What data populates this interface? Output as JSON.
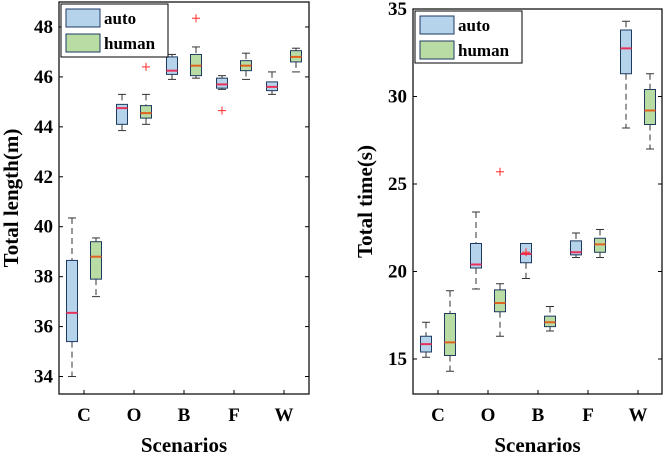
{
  "colors": {
    "auto_fill": "#b6d3ec",
    "human_fill": "#b9dca4",
    "auto_median": "#e8325a",
    "human_median": "#e06420",
    "outlier": "#ff2a2a",
    "whisker": "#333333"
  },
  "chart_data": [
    {
      "type": "box",
      "title": "",
      "xlabel": "Scenarios",
      "ylabel": "Total length(m)",
      "categories": [
        "C",
        "O",
        "B",
        "F",
        "W"
      ],
      "ylim": [
        33.3,
        49
      ],
      "yticks": [
        34,
        36,
        38,
        40,
        42,
        44,
        46,
        48
      ],
      "legend_position": "top-left",
      "series": [
        {
          "name": "auto",
          "boxes": [
            {
              "whislo": 34.0,
              "q1": 35.4,
              "med": 36.55,
              "q3": 38.65,
              "whishi": 40.35,
              "fliers": []
            },
            {
              "whislo": 43.85,
              "q1": 44.1,
              "med": 44.75,
              "q3": 44.9,
              "whishi": 45.3,
              "fliers": []
            },
            {
              "whislo": 45.9,
              "q1": 46.1,
              "med": 46.25,
              "q3": 46.8,
              "whishi": 46.9,
              "fliers": []
            },
            {
              "whislo": 45.5,
              "q1": 45.55,
              "med": 45.7,
              "q3": 45.95,
              "whishi": 46.05,
              "fliers": [
                44.65
              ]
            },
            {
              "whislo": 45.3,
              "q1": 45.45,
              "med": 45.6,
              "q3": 45.8,
              "whishi": 46.2,
              "fliers": []
            }
          ]
        },
        {
          "name": "human",
          "boxes": [
            {
              "whislo": 37.2,
              "q1": 37.9,
              "med": 38.8,
              "q3": 39.4,
              "whishi": 39.55,
              "fliers": []
            },
            {
              "whislo": 44.1,
              "q1": 44.35,
              "med": 44.55,
              "q3": 44.85,
              "whishi": 45.3,
              "fliers": [
                46.4
              ]
            },
            {
              "whislo": 45.95,
              "q1": 46.05,
              "med": 46.45,
              "q3": 46.9,
              "whishi": 47.2,
              "fliers": [
                48.35
              ]
            },
            {
              "whislo": 45.9,
              "q1": 46.25,
              "med": 46.45,
              "q3": 46.65,
              "whishi": 46.95,
              "fliers": []
            },
            {
              "whislo": 46.2,
              "q1": 46.6,
              "med": 46.8,
              "q3": 47.05,
              "whishi": 47.15,
              "fliers": []
            }
          ]
        }
      ]
    },
    {
      "type": "box",
      "title": "",
      "xlabel": "Scenarios",
      "ylabel": "Total time(s)",
      "categories": [
        "C",
        "O",
        "B",
        "F",
        "W"
      ],
      "ylim": [
        13,
        35
      ],
      "yticks": [
        15,
        20,
        25,
        30,
        35
      ],
      "legend_position": "top-left",
      "series": [
        {
          "name": "auto",
          "boxes": [
            {
              "whislo": 15.1,
              "q1": 15.4,
              "med": 15.85,
              "q3": 16.3,
              "whishi": 17.1,
              "fliers": []
            },
            {
              "whislo": 19.0,
              "q1": 20.2,
              "med": 20.4,
              "q3": 21.6,
              "whishi": 23.4,
              "fliers": []
            },
            {
              "whislo": 19.6,
              "q1": 20.5,
              "med": 21.0,
              "q3": 21.6,
              "whishi": 21.6,
              "fliers": [
                21.1
              ]
            },
            {
              "whislo": 20.8,
              "q1": 20.95,
              "med": 21.1,
              "q3": 21.75,
              "whishi": 22.2,
              "fliers": []
            },
            {
              "whislo": 28.2,
              "q1": 31.3,
              "med": 32.75,
              "q3": 33.8,
              "whishi": 34.3,
              "fliers": []
            }
          ]
        },
        {
          "name": "human",
          "boxes": [
            {
              "whislo": 14.3,
              "q1": 15.2,
              "med": 15.95,
              "q3": 17.6,
              "whishi": 18.9,
              "fliers": []
            },
            {
              "whislo": 16.3,
              "q1": 17.7,
              "med": 18.2,
              "q3": 18.95,
              "whishi": 19.3,
              "fliers": [
                25.7
              ]
            },
            {
              "whislo": 16.6,
              "q1": 16.85,
              "med": 17.1,
              "q3": 17.45,
              "whishi": 18.0,
              "fliers": []
            },
            {
              "whislo": 20.8,
              "q1": 21.1,
              "med": 21.55,
              "q3": 21.9,
              "whishi": 22.4,
              "fliers": []
            },
            {
              "whislo": 27.0,
              "q1": 28.4,
              "med": 29.2,
              "q3": 30.4,
              "whishi": 31.3,
              "fliers": []
            }
          ]
        }
      ]
    }
  ]
}
